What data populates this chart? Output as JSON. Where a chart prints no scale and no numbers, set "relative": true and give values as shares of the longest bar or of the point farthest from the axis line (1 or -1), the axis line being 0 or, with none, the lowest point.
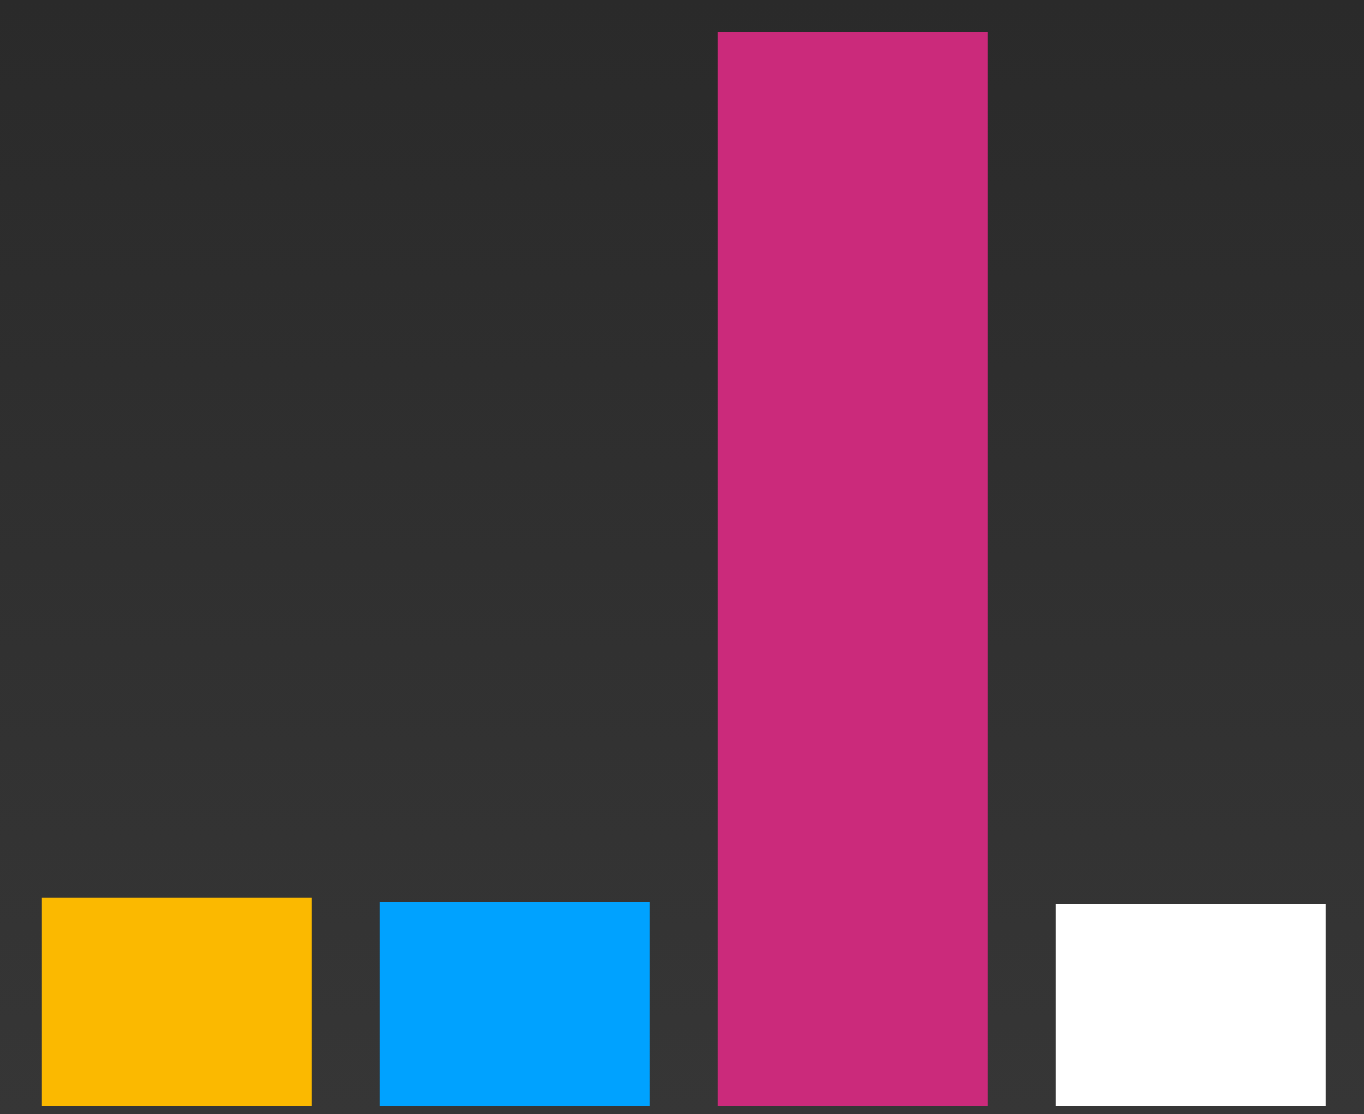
{
  "chart_data": {
    "type": "bar",
    "relative": true,
    "categories": [
      null,
      null,
      null,
      null
    ],
    "values": [
      0.194,
      0.19,
      1,
      0.188
    ],
    "colors": [
      "#fbb900",
      "#00a2ff",
      "#cb2a7b",
      "#ffffff"
    ]
  }
}
